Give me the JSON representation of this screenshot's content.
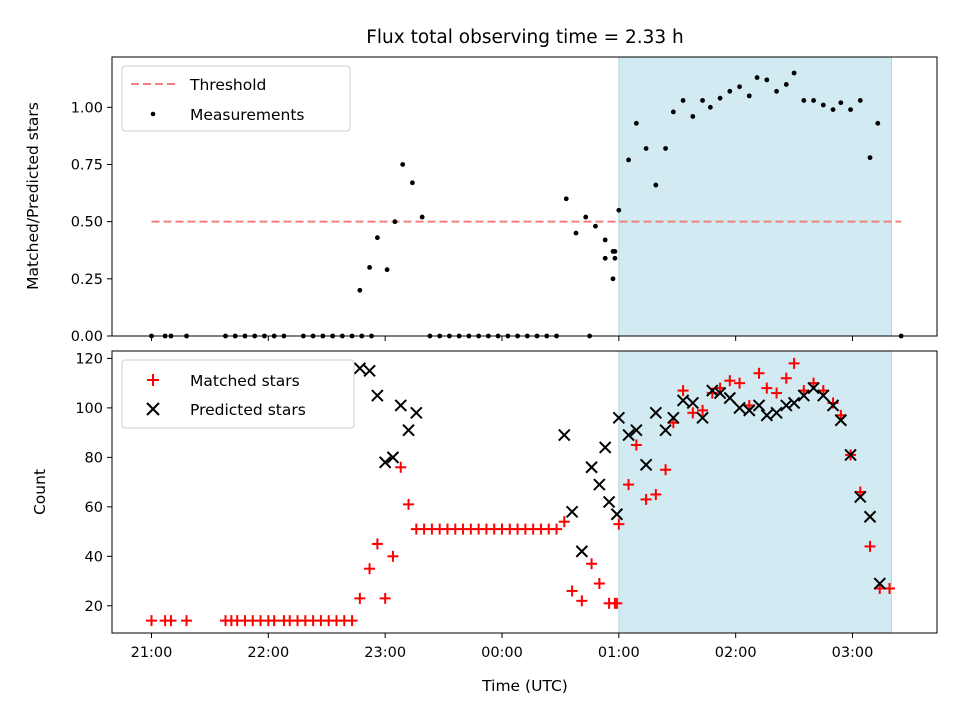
{
  "chart_data": [
    {
      "type": "scatter",
      "title": "Flux total observing time = 2.33 h",
      "xlabel": "",
      "ylabel": "Matched/Predicted stars",
      "xlim": [
        "20:50",
        "03:45"
      ],
      "ylim": [
        0,
        1.22
      ],
      "yticks": [
        "0.00",
        "0.25",
        "0.50",
        "0.75",
        "1.00"
      ],
      "grid": false,
      "legend": "top-left",
      "shaded_interval": {
        "start": "01:00",
        "end": "03:20",
        "color": "#add8e6"
      },
      "threshold": {
        "name": "Threshold",
        "value": 0.5,
        "x_range": [
          "21:00",
          "03:25"
        ],
        "color": "#f08080",
        "style": "dashed"
      },
      "series": [
        {
          "name": "Measurements",
          "marker": "dot",
          "color": "#000000",
          "points": [
            [
              "21:00",
              0
            ],
            [
              "21:07",
              0
            ],
            [
              "21:10",
              0
            ],
            [
              "21:18",
              0
            ],
            [
              "21:38",
              0
            ],
            [
              "21:43",
              0
            ],
            [
              "21:48",
              0
            ],
            [
              "21:53",
              0
            ],
            [
              "21:58",
              0
            ],
            [
              "22:03",
              0
            ],
            [
              "22:08",
              0
            ],
            [
              "22:18",
              0
            ],
            [
              "22:23",
              0
            ],
            [
              "22:28",
              0
            ],
            [
              "22:33",
              0
            ],
            [
              "22:38",
              0
            ],
            [
              "22:43",
              0
            ],
            [
              "22:48",
              0
            ],
            [
              "22:53",
              0
            ],
            [
              "22:47",
              0.2
            ],
            [
              "22:52",
              0.3
            ],
            [
              "22:56",
              0.43
            ],
            [
              "23:01",
              0.29
            ],
            [
              "23:05",
              0.5
            ],
            [
              "23:09",
              0.75
            ],
            [
              "23:14",
              0.67
            ],
            [
              "23:19",
              0.52
            ],
            [
              "23:23",
              0
            ],
            [
              "23:28",
              0
            ],
            [
              "23:33",
              0
            ],
            [
              "23:38",
              0
            ],
            [
              "23:43",
              0
            ],
            [
              "23:48",
              0
            ],
            [
              "23:53",
              0
            ],
            [
              "23:58",
              0
            ],
            [
              "00:03",
              0
            ],
            [
              "00:08",
              0
            ],
            [
              "00:13",
              0
            ],
            [
              "00:18",
              0
            ],
            [
              "00:23",
              0
            ],
            [
              "00:28",
              0
            ],
            [
              "00:33",
              0.6
            ],
            [
              "00:38",
              0.45
            ],
            [
              "00:43",
              0.52
            ],
            [
              "00:48",
              0.48
            ],
            [
              "00:53",
              0.42
            ],
            [
              "00:58",
              0.34
            ],
            [
              "00:53",
              0.34
            ],
            [
              "00:58",
              0.37
            ],
            [
              "00:45",
              0
            ],
            [
              "00:57",
              0.37
            ],
            [
              "00:57",
              0.25
            ],
            [
              "01:00",
              0.55
            ],
            [
              "01:05",
              0.77
            ],
            [
              "01:09",
              0.93
            ],
            [
              "01:14",
              0.82
            ],
            [
              "01:19",
              0.66
            ],
            [
              "01:24",
              0.82
            ],
            [
              "01:28",
              0.98
            ],
            [
              "01:33",
              1.03
            ],
            [
              "01:38",
              0.96
            ],
            [
              "01:43",
              1.03
            ],
            [
              "01:47",
              1.0
            ],
            [
              "01:52",
              1.04
            ],
            [
              "01:57",
              1.07
            ],
            [
              "02:02",
              1.09
            ],
            [
              "02:07",
              1.05
            ],
            [
              "02:11",
              1.13
            ],
            [
              "02:16",
              1.12
            ],
            [
              "02:21",
              1.07
            ],
            [
              "02:26",
              1.1
            ],
            [
              "02:30",
              1.15
            ],
            [
              "02:35",
              1.03
            ],
            [
              "02:40",
              1.03
            ],
            [
              "02:45",
              1.01
            ],
            [
              "02:50",
              0.99
            ],
            [
              "02:54",
              1.02
            ],
            [
              "02:59",
              0.99
            ],
            [
              "03:04",
              1.03
            ],
            [
              "03:09",
              0.78
            ],
            [
              "03:13",
              0.93
            ],
            [
              "03:25",
              0
            ]
          ]
        }
      ]
    },
    {
      "type": "scatter",
      "title": "",
      "xlabel": "Time (UTC)",
      "ylabel": "Count",
      "xlim": [
        "20:50",
        "03:45"
      ],
      "ylim": [
        9,
        123
      ],
      "xticks": [
        "21:00",
        "22:00",
        "23:00",
        "00:00",
        "01:00",
        "02:00",
        "03:00"
      ],
      "yticks": [
        "20",
        "40",
        "60",
        "80",
        "100",
        "120"
      ],
      "grid": false,
      "legend": "top-left",
      "shaded_interval": {
        "start": "01:00",
        "end": "03:20",
        "color": "#add8e6"
      },
      "series": [
        {
          "name": "Matched stars",
          "marker": "plus",
          "color": "#ff0000",
          "points": [
            [
              "21:00",
              14
            ],
            [
              "21:07",
              14
            ],
            [
              "21:10",
              14
            ],
            [
              "21:18",
              14
            ],
            [
              "21:38",
              14
            ],
            [
              "21:41",
              14
            ],
            [
              "21:44",
              14
            ],
            [
              "21:48",
              14
            ],
            [
              "21:52",
              14
            ],
            [
              "21:56",
              14
            ],
            [
              "22:00",
              14
            ],
            [
              "22:03",
              14
            ],
            [
              "22:08",
              14
            ],
            [
              "22:11",
              14
            ],
            [
              "22:15",
              14
            ],
            [
              "22:19",
              14
            ],
            [
              "22:23",
              14
            ],
            [
              "22:27",
              14
            ],
            [
              "22:31",
              14
            ],
            [
              "22:35",
              14
            ],
            [
              "22:39",
              14
            ],
            [
              "22:43",
              14
            ],
            [
              "22:47",
              23
            ],
            [
              "22:52",
              35
            ],
            [
              "22:56",
              45
            ],
            [
              "23:00",
              23
            ],
            [
              "23:04",
              40
            ],
            [
              "23:08",
              76
            ],
            [
              "23:12",
              61
            ],
            [
              "23:16",
              51
            ],
            [
              "23:20",
              51
            ],
            [
              "23:24",
              51
            ],
            [
              "23:28",
              51
            ],
            [
              "23:32",
              51
            ],
            [
              "23:36",
              51
            ],
            [
              "23:40",
              51
            ],
            [
              "23:44",
              51
            ],
            [
              "23:48",
              51
            ],
            [
              "23:52",
              51
            ],
            [
              "23:56",
              51
            ],
            [
              "00:00",
              51
            ],
            [
              "00:04",
              51
            ],
            [
              "00:08",
              51
            ],
            [
              "00:12",
              51
            ],
            [
              "00:16",
              51
            ],
            [
              "00:20",
              51
            ],
            [
              "00:24",
              51
            ],
            [
              "00:28",
              51
            ],
            [
              "00:32",
              54
            ],
            [
              "00:36",
              26
            ],
            [
              "00:41",
              22
            ],
            [
              "00:46",
              37
            ],
            [
              "00:50",
              29
            ],
            [
              "00:55",
              21
            ],
            [
              "00:58",
              21
            ],
            [
              "00:59",
              21
            ],
            [
              "01:00",
              53
            ],
            [
              "01:05",
              69
            ],
            [
              "01:09",
              85
            ],
            [
              "01:14",
              63
            ],
            [
              "01:19",
              65
            ],
            [
              "01:24",
              75
            ],
            [
              "01:28",
              94
            ],
            [
              "01:33",
              107
            ],
            [
              "01:38",
              98
            ],
            [
              "01:43",
              99
            ],
            [
              "01:48",
              106
            ],
            [
              "01:52",
              108
            ],
            [
              "01:57",
              111
            ],
            [
              "02:02",
              110
            ],
            [
              "02:07",
              101
            ],
            [
              "02:12",
              114
            ],
            [
              "02:16",
              108
            ],
            [
              "02:21",
              106
            ],
            [
              "02:26",
              112
            ],
            [
              "02:30",
              118
            ],
            [
              "02:35",
              107
            ],
            [
              "02:40",
              110
            ],
            [
              "02:45",
              107
            ],
            [
              "02:50",
              102
            ],
            [
              "02:54",
              97
            ],
            [
              "02:59",
              81
            ],
            [
              "03:04",
              66
            ],
            [
              "03:09",
              44
            ],
            [
              "03:14",
              27
            ],
            [
              "03:19",
              27
            ]
          ]
        },
        {
          "name": "Predicted stars",
          "marker": "x",
          "color": "#000000",
          "points": [
            [
              "22:47",
              116
            ],
            [
              "22:52",
              115
            ],
            [
              "22:56",
              105
            ],
            [
              "23:00",
              78
            ],
            [
              "23:04",
              80
            ],
            [
              "23:08",
              101
            ],
            [
              "23:12",
              91
            ],
            [
              "23:16",
              98
            ],
            [
              "00:32",
              89
            ],
            [
              "00:36",
              58
            ],
            [
              "00:41",
              42
            ],
            [
              "00:46",
              76
            ],
            [
              "00:50",
              69
            ],
            [
              "00:55",
              62
            ],
            [
              "00:59",
              57
            ],
            [
              "00:53",
              84
            ],
            [
              "01:00",
              96
            ],
            [
              "01:05",
              89
            ],
            [
              "01:09",
              91
            ],
            [
              "01:14",
              77
            ],
            [
              "01:19",
              98
            ],
            [
              "01:24",
              91
            ],
            [
              "01:28",
              96
            ],
            [
              "01:33",
              103
            ],
            [
              "01:38",
              102
            ],
            [
              "01:43",
              96
            ],
            [
              "01:48",
              107
            ],
            [
              "01:52",
              106
            ],
            [
              "01:57",
              104
            ],
            [
              "02:02",
              100
            ],
            [
              "02:07",
              99
            ],
            [
              "02:12",
              101
            ],
            [
              "02:16",
              97
            ],
            [
              "02:21",
              98
            ],
            [
              "02:26",
              101
            ],
            [
              "02:30",
              102
            ],
            [
              "02:35",
              105
            ],
            [
              "02:40",
              108
            ],
            [
              "02:45",
              105
            ],
            [
              "02:50",
              101
            ],
            [
              "02:54",
              95
            ],
            [
              "02:59",
              81
            ],
            [
              "03:04",
              64
            ],
            [
              "03:09",
              56
            ],
            [
              "03:14",
              29
            ]
          ]
        }
      ]
    }
  ]
}
